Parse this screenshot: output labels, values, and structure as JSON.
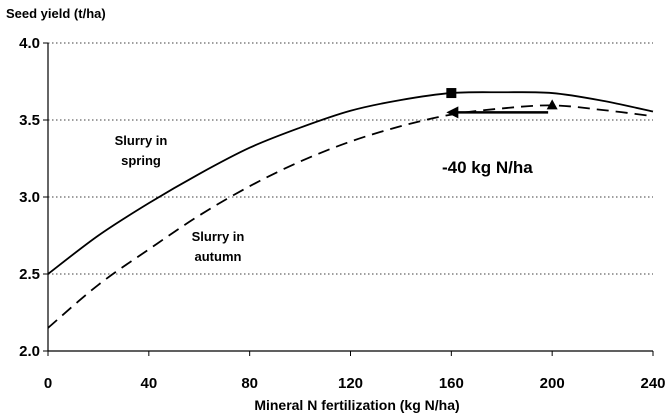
{
  "chart_data": {
    "type": "line",
    "ylabel": "Seed yield (t/ha)",
    "xlabel": "Mineral N fertilization (kg N/ha)",
    "xlim": [
      0,
      240
    ],
    "ylim": [
      2.0,
      4.0
    ],
    "x_ticks": [
      "0",
      "40",
      "80",
      "120",
      "160",
      "200",
      "240"
    ],
    "y_ticks": [
      "2.0",
      "2.5",
      "3.0",
      "3.5",
      "4.0"
    ],
    "grid": "horizontal dotted",
    "series": [
      {
        "label_lines": [
          "Slurry in",
          "spring"
        ],
        "style": "solid",
        "color": "#000000",
        "x": [
          0,
          20,
          40,
          60,
          80,
          100,
          120,
          140,
          160,
          180,
          200,
          220,
          240
        ],
        "y": [
          2.5,
          2.75,
          2.96,
          3.15,
          3.32,
          3.45,
          3.56,
          3.63,
          3.675,
          3.68,
          3.675,
          3.625,
          3.555
        ],
        "marker": {
          "shape": "square",
          "x": 160,
          "y": 3.675
        }
      },
      {
        "label_lines": [
          "Slurry in",
          "autumn"
        ],
        "style": "dashed",
        "color": "#000000",
        "x": [
          0,
          20,
          40,
          60,
          80,
          100,
          120,
          140,
          160,
          180,
          200,
          220,
          240
        ],
        "y": [
          2.15,
          2.43,
          2.66,
          2.88,
          3.07,
          3.23,
          3.36,
          3.46,
          3.535,
          3.575,
          3.595,
          3.565,
          3.525
        ],
        "marker": {
          "shape": "triangle",
          "x": 200,
          "y": 3.595
        }
      }
    ],
    "annotations": [
      {
        "text": "-40 kg N/ha",
        "arrow_from_x": 198,
        "arrow_to_x": 160,
        "arrow_y": 3.53
      }
    ]
  }
}
